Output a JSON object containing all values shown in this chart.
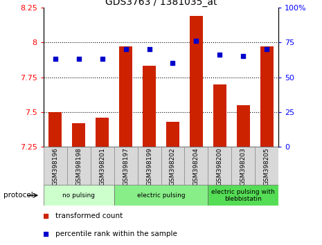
{
  "title": "GDS3763 / 1381035_at",
  "samples": [
    "GSM398196",
    "GSM398198",
    "GSM398201",
    "GSM398197",
    "GSM398199",
    "GSM398202",
    "GSM398204",
    "GSM398200",
    "GSM398203",
    "GSM398205"
  ],
  "transformed_count": [
    7.5,
    7.42,
    7.46,
    7.97,
    7.83,
    7.43,
    8.19,
    7.7,
    7.55,
    7.97
  ],
  "percentile_rank": [
    63,
    63,
    63,
    70,
    70,
    60,
    76,
    66,
    65,
    70
  ],
  "ylim_left": [
    7.25,
    8.25
  ],
  "ylim_right": [
    0,
    100
  ],
  "yticks_left": [
    7.25,
    7.5,
    7.75,
    8.0,
    8.25
  ],
  "yticks_right": [
    0,
    25,
    50,
    75,
    100
  ],
  "ytick_labels_left": [
    "7.25",
    "7.5",
    "7.75",
    "8",
    "8.25"
  ],
  "ytick_labels_right": [
    "0",
    "25",
    "50",
    "75",
    "100%"
  ],
  "hlines": [
    7.5,
    7.75,
    8.0
  ],
  "bar_color": "#cc2200",
  "dot_color": "#0000cc",
  "groups": [
    {
      "label": "no pulsing",
      "start": 0,
      "end": 3,
      "color": "#ccffcc"
    },
    {
      "label": "electric pulsing",
      "start": 3,
      "end": 7,
      "color": "#88ee88"
    },
    {
      "label": "electric pulsing with\nblebbistatin",
      "start": 7,
      "end": 10,
      "color": "#55dd55"
    }
  ],
  "protocol_label": "protocol",
  "legend_items": [
    {
      "color": "#cc2200",
      "label": "transformed count",
      "marker": "s"
    },
    {
      "color": "#0000cc",
      "label": "percentile rank within the sample",
      "marker": "s"
    }
  ],
  "bar_width": 0.55,
  "ybase": 7.25
}
